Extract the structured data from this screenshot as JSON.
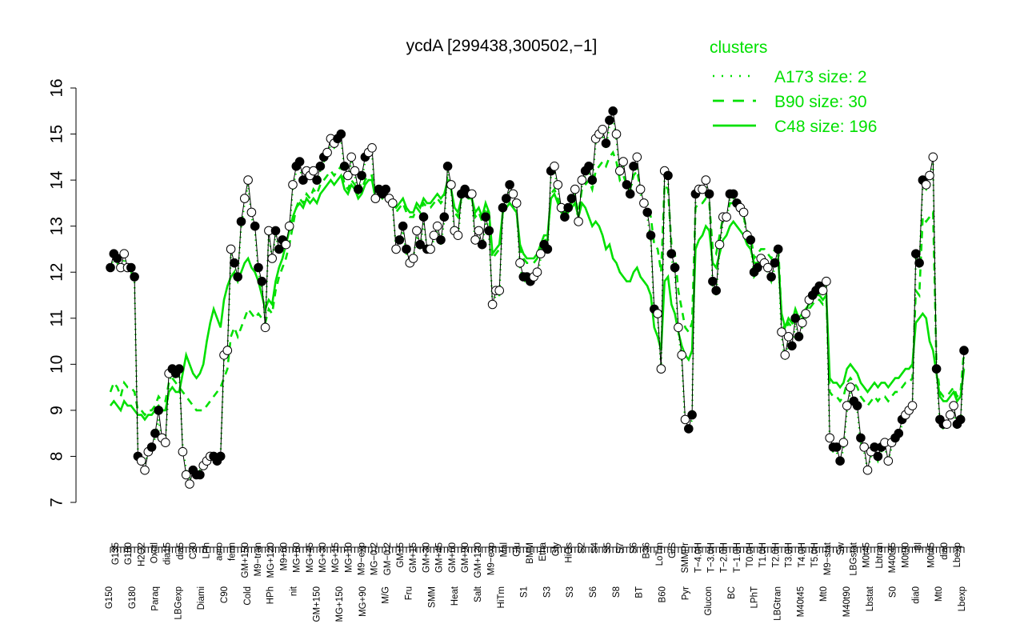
{
  "chart_data": {
    "type": "line",
    "title": "ycdA [299438,300502,−1]",
    "xlabel": "",
    "ylabel": "",
    "ylim": [
      7,
      16
    ],
    "yticks": [
      7,
      8,
      9,
      10,
      11,
      12,
      13,
      14,
      15,
      16
    ],
    "grid": false,
    "legend_placement": "top-right",
    "legend_title": "clusters",
    "legend": [
      {
        "label": "A173 size: 2",
        "style": "dotted",
        "color": "#00e000"
      },
      {
        "label": "B90 size: 30",
        "style": "dashed",
        "color": "#00e000"
      },
      {
        "label": "C48 size: 196",
        "style": "solid",
        "color": "#00e000"
      }
    ],
    "xtick_labels_upper": [
      "G135",
      "G180",
      "H2O2",
      "Oxctl",
      "dia15",
      "dia5",
      "C30",
      "LPh",
      "aero",
      "ferm",
      "GM+150",
      "M9−tran",
      "MG+120",
      "M9+60",
      "MG+60",
      "MG+45",
      "MG+30",
      "MG+15",
      "MG+10",
      "M9−exp",
      "MG−0.2",
      "GM−0.2",
      "GM+5",
      "GM+15",
      "GM+30",
      "GM+45",
      "GM+60",
      "GM+90",
      "GM+120",
      "M9−exp",
      "Mal",
      "Glu",
      "BMM",
      "Etha",
      "Gly",
      "HiOs",
      "S2",
      "S4",
      "S5",
      "S7",
      "S6",
      "B36",
      "LoTm",
      "G/S",
      "SMMPr",
      "T−4.0H",
      "T−3.0H",
      "T−2.0H",
      "T−1.0H",
      "T0.0H",
      "T1.0H",
      "T2.0H",
      "T3.0H",
      "T4.0H",
      "T5.0H",
      "M9−stat",
      "Sw",
      "LBGstat",
      "M0t45",
      "Lbtran",
      "M40t45",
      "M0t90",
      "Bl",
      "M0t45",
      "dia0",
      "Lbexp"
    ],
    "xtick_labels_lower": [
      "G150",
      "G180",
      "Paraq",
      "LBGexp",
      "Diami",
      "C90",
      "Cold",
      "HPh",
      "nit",
      "GM+150",
      "MG+150",
      "MG+90",
      "M/G",
      "Fru",
      "SMM",
      "Heat",
      "Salt",
      "HiTm",
      "S1",
      "S3",
      "S3",
      "S6",
      "S8",
      "BT",
      "B60",
      "Pyr",
      "Glucon",
      "BC",
      "LPhT",
      "LBGtran",
      "M40t45",
      "Mt0",
      "M40t90",
      "Lbstat",
      "S0",
      "dia0",
      "Mt0",
      "Lbexp"
    ],
    "series": [
      {
        "line_style": "connecting",
        "color": "#000000",
        "values": [
          12.1,
          12.4,
          12.3,
          12.1,
          12.4,
          12.1,
          12.1,
          11.9,
          8.0,
          7.9,
          7.7,
          8.1,
          8.2,
          8.5,
          9.0,
          8.4,
          8.3,
          9.8,
          9.9,
          9.8,
          9.9,
          8.1,
          7.6,
          7.4,
          7.7,
          7.6,
          7.6,
          7.8,
          7.9,
          8.0,
          8.0,
          7.9,
          8.0,
          10.2,
          10.3,
          12.5,
          12.2,
          11.9,
          13.1,
          13.6,
          14.0,
          13.3,
          13.0,
          12.1,
          11.8,
          10.8,
          12.9,
          12.3,
          12.9,
          12.5,
          12.7,
          12.6,
          13.0,
          13.9,
          14.3,
          14.4,
          14.0,
          14.2,
          14.1,
          14.2,
          14.0,
          14.3,
          14.5,
          14.6,
          14.9,
          14.8,
          14.9,
          15.0,
          14.3,
          14.1,
          14.5,
          14.2,
          13.8,
          14.1,
          14.5,
          14.6,
          14.7,
          13.6,
          13.8,
          13.7,
          13.8,
          13.6,
          13.5,
          12.5,
          12.7,
          13.0,
          12.5,
          12.2,
          12.3,
          12.9,
          12.6,
          13.2,
          12.5,
          12.5,
          12.8,
          13.0,
          12.7,
          13.2,
          14.3,
          13.9,
          12.9,
          12.8,
          13.7,
          13.8,
          13.7,
          13.7,
          12.7,
          12.9,
          12.6,
          13.2,
          12.9,
          11.3,
          11.6,
          11.6,
          13.4,
          13.6,
          13.9,
          13.7,
          13.5,
          12.2,
          11.9,
          11.9,
          11.8,
          11.9,
          12.0,
          12.4,
          12.6,
          12.5,
          14.2,
          14.3,
          13.9,
          13.4,
          13.2,
          13.4,
          13.6,
          13.8,
          13.1,
          14.0,
          14.2,
          14.3,
          14.0,
          14.9,
          15.0,
          15.1,
          14.8,
          15.3,
          15.5,
          15.0,
          14.2,
          14.4,
          13.9,
          13.7,
          14.3,
          14.5,
          13.8,
          13.5,
          13.3,
          12.8,
          11.2,
          11.1,
          9.9,
          14.2,
          14.1,
          12.4,
          12.1,
          10.8,
          10.2,
          8.8,
          8.6,
          8.9,
          13.7,
          13.8,
          13.8,
          14.0,
          13.7,
          11.8,
          11.6,
          12.6,
          13.2,
          13.2,
          13.7,
          13.7,
          13.5,
          13.4,
          13.3,
          12.8,
          12.7,
          12.0,
          12.1,
          12.3,
          12.2,
          12.1,
          11.9,
          12.2,
          12.5,
          10.7,
          10.2,
          10.6,
          10.4,
          11.0,
          10.6,
          10.9,
          11.1,
          11.4,
          11.5,
          11.6,
          11.7,
          11.6,
          11.8,
          8.4,
          8.2,
          8.2,
          7.9,
          8.3,
          9.1,
          9.5,
          9.2,
          9.1,
          8.4,
          8.2,
          7.7,
          8.1,
          8.2,
          8.0,
          8.2,
          8.3,
          7.9,
          8.3,
          8.4,
          8.5,
          8.8,
          8.9,
          9.0,
          9.1,
          12.4,
          12.2,
          14.0,
          13.9,
          14.1,
          14.5,
          9.9,
          8.8,
          8.7,
          8.7,
          8.9,
          9.1,
          8.7,
          8.8,
          10.3
        ]
      },
      {
        "name": "A173 size: 2",
        "line_style": "dotted",
        "color": "#00e000",
        "values": [
          12.1,
          12.3,
          12.2,
          12.0,
          12.3,
          12.0,
          12.0,
          11.8,
          8.1,
          7.9,
          7.8,
          8.1,
          8.2,
          8.4,
          8.8,
          8.4,
          8.3,
          9.6,
          9.8,
          9.7,
          9.8,
          8.2,
          7.7,
          7.5,
          7.7,
          7.7,
          7.7,
          7.9,
          7.9,
          8.0,
          8.0,
          7.9,
          8.0,
          10.1,
          10.2,
          12.4,
          12.1,
          11.9,
          13.0,
          13.5,
          13.9,
          13.2,
          12.9,
          12.0,
          11.7,
          10.9,
          12.8,
          12.3,
          12.8,
          12.5,
          12.6,
          12.6,
          12.9,
          13.8,
          14.2,
          14.3,
          13.9,
          14.1,
          14.0,
          14.1,
          13.9,
          14.2,
          14.4,
          14.5,
          14.8,
          14.7,
          14.8,
          14.9,
          14.2,
          14.0,
          14.4,
          14.1,
          13.7,
          14.0,
          14.4,
          14.5,
          14.6,
          13.5,
          13.7,
          13.6,
          13.7,
          13.5,
          13.4,
          12.5,
          12.6,
          12.9,
          12.4,
          12.2,
          12.3,
          12.8,
          12.5,
          13.1,
          12.5,
          12.5,
          12.7,
          12.9,
          12.6,
          13.1,
          14.2,
          13.8,
          12.8,
          12.7,
          13.6,
          13.7,
          13.6,
          13.6,
          12.6,
          12.8,
          12.5,
          13.1,
          12.8,
          11.3,
          11.5,
          11.5,
          13.3,
          13.5,
          13.8,
          13.6,
          13.4,
          12.1,
          11.8,
          11.8,
          11.7,
          11.8,
          11.9,
          12.3,
          12.5,
          12.4,
          14.1,
          14.2,
          13.8,
          13.3,
          13.1,
          13.3,
          13.5,
          13.7,
          13.0,
          13.9,
          14.1,
          14.2,
          13.9,
          14.8,
          14.9,
          15.0,
          14.7,
          15.2,
          15.4,
          14.9,
          14.1,
          14.3,
          13.8,
          13.6,
          14.2,
          14.4,
          13.7,
          13.4,
          13.2,
          12.7,
          11.1,
          11.0,
          9.9,
          14.1,
          14.0,
          12.3,
          12.0,
          10.7,
          10.1,
          8.7,
          8.6,
          8.8,
          13.6,
          13.7,
          13.7,
          13.9,
          13.6,
          11.7,
          11.5,
          12.5,
          13.1,
          13.1,
          13.6,
          13.6,
          13.4,
          13.3,
          13.2,
          12.7,
          12.6,
          11.9,
          12.0,
          12.2,
          12.1,
          12.0,
          11.8,
          12.1,
          12.4,
          10.6,
          10.1,
          10.5,
          10.3,
          10.9,
          10.5,
          10.8,
          11.0,
          11.3,
          11.4,
          11.5,
          11.6,
          11.5,
          11.7,
          8.3,
          8.1,
          8.1,
          7.8,
          8.2,
          9.0,
          9.4,
          9.1,
          9.0,
          8.3,
          8.1,
          7.7,
          8.0,
          8.1,
          7.9,
          8.1,
          8.2,
          7.9,
          8.2,
          8.3,
          8.4,
          8.7,
          8.8,
          8.9,
          9.0,
          12.3,
          12.1,
          13.9,
          13.8,
          14.0,
          14.4,
          9.8,
          8.7,
          8.6,
          8.6,
          8.8,
          9.0,
          8.6,
          8.7,
          10.2
        ]
      },
      {
        "name": "B90 size: 30",
        "line_style": "dashed",
        "color": "#00e000",
        "values": [
          9.4,
          9.6,
          9.5,
          9.3,
          9.6,
          9.5,
          9.5,
          9.4,
          9.0,
          9.0,
          8.9,
          9.0,
          9.0,
          9.1,
          9.3,
          9.2,
          9.2,
          9.6,
          9.7,
          9.6,
          9.5,
          9.4,
          9.3,
          9.2,
          9.1,
          9.0,
          9.0,
          9.0,
          9.1,
          9.2,
          9.3,
          9.4,
          9.5,
          9.7,
          9.9,
          10.6,
          10.8,
          10.6,
          10.8,
          11.0,
          11.2,
          11.1,
          11.0,
          11.1,
          11.0,
          10.9,
          11.2,
          11.1,
          11.6,
          11.9,
          12.1,
          12.3,
          12.6,
          13.0,
          13.4,
          13.6,
          13.5,
          13.7,
          13.6,
          13.8,
          13.7,
          13.9,
          14.0,
          14.1,
          14.2,
          14.1,
          14.2,
          14.3,
          13.9,
          13.8,
          14.0,
          13.9,
          13.7,
          13.8,
          14.0,
          14.1,
          14.1,
          13.6,
          13.7,
          13.6,
          13.7,
          13.6,
          13.5,
          13.3,
          13.4,
          13.5,
          13.3,
          13.2,
          13.2,
          13.4,
          13.3,
          13.5,
          13.4,
          13.4,
          13.5,
          13.6,
          13.5,
          13.6,
          14.0,
          13.8,
          13.3,
          13.2,
          13.6,
          13.7,
          13.6,
          13.6,
          13.2,
          13.3,
          13.1,
          13.4,
          13.2,
          12.3,
          12.4,
          12.5,
          13.3,
          13.4,
          13.5,
          13.4,
          13.3,
          12.5,
          12.3,
          12.2,
          12.2,
          12.2,
          12.3,
          12.5,
          12.7,
          12.7,
          13.7,
          13.8,
          13.6,
          13.4,
          13.3,
          13.4,
          13.5,
          13.6,
          13.3,
          13.8,
          13.9,
          14.0,
          13.8,
          14.2,
          14.3,
          14.4,
          14.3,
          14.5,
          14.6,
          14.4,
          14.0,
          14.1,
          13.9,
          13.8,
          14.1,
          14.2,
          13.8,
          13.6,
          13.5,
          13.2,
          12.6,
          12.5,
          12.0,
          13.9,
          13.8,
          12.6,
          12.4,
          11.6,
          11.2,
          10.8,
          10.7,
          10.9,
          13.4,
          13.5,
          13.5,
          13.6,
          13.5,
          12.5,
          12.4,
          12.8,
          13.2,
          13.2,
          13.5,
          13.5,
          13.4,
          13.3,
          13.2,
          12.9,
          12.8,
          12.3,
          12.4,
          12.5,
          12.5,
          12.4,
          12.3,
          12.5,
          12.6,
          11.0,
          10.7,
          10.9,
          10.8,
          11.1,
          10.9,
          11.0,
          11.1,
          11.2,
          11.3,
          11.4,
          11.4,
          11.3,
          11.4,
          9.4,
          9.3,
          9.3,
          9.2,
          9.3,
          9.6,
          9.7,
          9.6,
          9.5,
          9.3,
          9.2,
          9.1,
          9.2,
          9.3,
          9.2,
          9.3,
          9.3,
          9.2,
          9.3,
          9.4,
          9.4,
          9.5,
          9.6,
          9.6,
          9.7,
          11.6,
          11.5,
          13.2,
          13.1,
          13.2,
          13.3,
          10.0,
          9.4,
          9.3,
          9.3,
          9.4,
          9.5,
          9.3,
          9.4,
          10.3
        ]
      },
      {
        "name": "C48 size: 196",
        "line_style": "solid",
        "color": "#00e000",
        "values": [
          9.1,
          9.2,
          9.1,
          9.0,
          9.2,
          9.1,
          9.1,
          9.0,
          8.9,
          8.9,
          8.8,
          8.9,
          8.9,
          9.0,
          9.1,
          9.0,
          9.0,
          9.4,
          9.5,
          9.4,
          9.4,
          9.8,
          10.2,
          10.0,
          9.8,
          9.7,
          9.8,
          10.0,
          10.5,
          10.9,
          11.2,
          11.0,
          10.8,
          11.4,
          11.7,
          11.9,
          12.0,
          11.8,
          12.0,
          12.2,
          12.3,
          12.1,
          12.0,
          11.8,
          11.5,
          11.2,
          11.4,
          11.3,
          11.8,
          12.1,
          12.3,
          12.6,
          12.9,
          13.2,
          13.4,
          13.5,
          13.4,
          13.6,
          13.5,
          13.6,
          13.5,
          13.7,
          13.8,
          13.9,
          14.0,
          13.9,
          14.0,
          14.1,
          13.8,
          13.7,
          13.9,
          13.8,
          13.6,
          13.7,
          13.9,
          14.0,
          14.0,
          13.6,
          13.7,
          13.6,
          13.7,
          13.6,
          13.5,
          13.4,
          13.5,
          13.6,
          13.4,
          13.3,
          13.3,
          13.5,
          13.4,
          13.6,
          13.5,
          13.5,
          13.6,
          13.7,
          13.6,
          13.7,
          14.0,
          13.8,
          13.4,
          13.3,
          13.6,
          13.7,
          13.6,
          13.6,
          13.3,
          13.4,
          13.2,
          13.5,
          13.3,
          12.4,
          12.5,
          12.6,
          13.3,
          13.4,
          13.5,
          13.4,
          13.3,
          12.6,
          12.4,
          12.3,
          12.3,
          12.3,
          12.4,
          12.6,
          12.8,
          12.8,
          13.6,
          13.7,
          13.5,
          13.3,
          13.2,
          13.3,
          13.4,
          13.5,
          13.2,
          13.5,
          13.4,
          13.2,
          13.0,
          13.1,
          13.0,
          12.8,
          12.5,
          12.6,
          12.3,
          12.2,
          12.0,
          11.9,
          11.8,
          11.8,
          12.0,
          12.1,
          11.9,
          11.8,
          11.7,
          11.5,
          10.8,
          10.6,
          10.3,
          11.8,
          11.9,
          11.3,
          11.1,
          10.7,
          10.4,
          10.2,
          10.1,
          10.3,
          12.5,
          12.7,
          12.8,
          13.0,
          12.9,
          12.2,
          12.1,
          12.4,
          12.7,
          12.8,
          13.0,
          13.1,
          13.0,
          12.9,
          12.8,
          12.6,
          12.5,
          12.2,
          12.2,
          12.3,
          12.3,
          12.2,
          12.1,
          12.2,
          12.3,
          11.1,
          10.8,
          11.0,
          10.9,
          11.2,
          11.0,
          11.1,
          11.2,
          11.3,
          11.4,
          11.5,
          11.5,
          11.4,
          11.5,
          9.7,
          9.6,
          9.6,
          9.5,
          9.6,
          9.9,
          10.0,
          9.9,
          9.8,
          9.6,
          9.5,
          9.4,
          9.5,
          9.6,
          9.5,
          9.6,
          9.6,
          9.5,
          9.6,
          9.7,
          9.7,
          9.8,
          9.9,
          9.9,
          10.0,
          10.9,
          11.0,
          11.1,
          11.0,
          10.5,
          10.3,
          9.8,
          9.3,
          9.2,
          9.2,
          9.3,
          9.4,
          9.2,
          9.3,
          9.9
        ]
      }
    ]
  }
}
